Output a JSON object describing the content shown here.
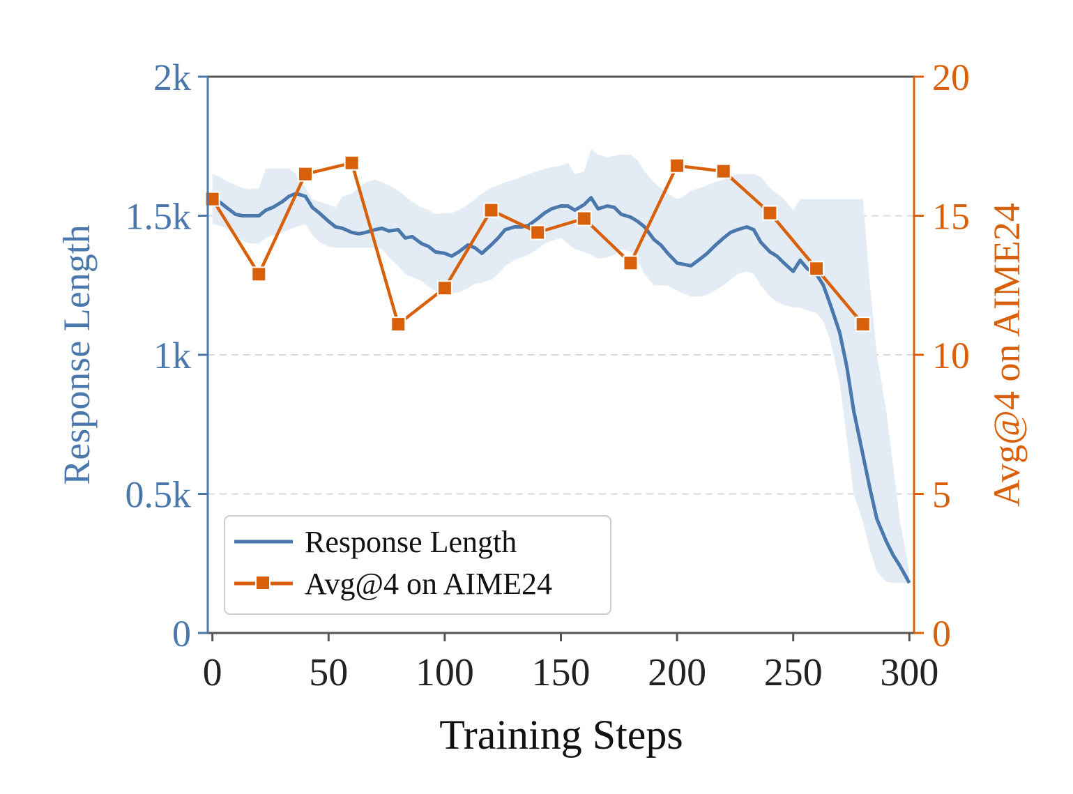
{
  "chart_data": {
    "type": "line",
    "xlabel": "Training Steps",
    "ylabel_left": "Response Length",
    "ylabel_right": "Avg@4 on AIME24",
    "xlim": [
      -2,
      302
    ],
    "ylim_left": [
      0,
      2000
    ],
    "ylim_right": [
      0,
      20
    ],
    "x_ticks": [
      0,
      50,
      100,
      150,
      200,
      250,
      300
    ],
    "x_tick_labels": [
      "0",
      "50",
      "100",
      "150",
      "200",
      "250",
      "300"
    ],
    "y_left_ticks": [
      0,
      500,
      1000,
      1500,
      2000
    ],
    "y_left_tick_labels": [
      "0",
      "0.5k",
      "1k",
      "1.5k",
      "2k"
    ],
    "y_right_ticks": [
      0,
      5,
      10,
      15,
      20
    ],
    "y_right_tick_labels": [
      "0",
      "5",
      "10",
      "15",
      "20"
    ],
    "grid": "horizontal dashed",
    "legend_position": "lower-left",
    "colors": {
      "left": "#4a78ac",
      "right": "#d9600b",
      "band": "#e3ebf4",
      "axis": "#555555"
    },
    "series": [
      {
        "name": "Response Length",
        "axis": "left",
        "marker": "none",
        "x": [
          0,
          3,
          6,
          10,
          13,
          16,
          20,
          23,
          26,
          30,
          33,
          36,
          40,
          43,
          46,
          50,
          53,
          56,
          60,
          63,
          66,
          70,
          73,
          76,
          80,
          83,
          86,
          90,
          93,
          96,
          100,
          103,
          106,
          110,
          113,
          116,
          120,
          123,
          126,
          130,
          133,
          136,
          140,
          143,
          146,
          150,
          153,
          156,
          160,
          163,
          166,
          170,
          173,
          176,
          180,
          183,
          186,
          190,
          193,
          196,
          200,
          203,
          206,
          210,
          213,
          216,
          220,
          223,
          226,
          230,
          233,
          236,
          240,
          243,
          246,
          250,
          253,
          256,
          260,
          263,
          266,
          270,
          273,
          276,
          280,
          283,
          286,
          290,
          293,
          296,
          300
        ],
        "y": [
          1560,
          1550,
          1530,
          1505,
          1500,
          1500,
          1500,
          1520,
          1530,
          1550,
          1570,
          1580,
          1570,
          1530,
          1510,
          1480,
          1460,
          1455,
          1440,
          1435,
          1440,
          1450,
          1455,
          1445,
          1450,
          1420,
          1425,
          1400,
          1390,
          1370,
          1365,
          1355,
          1370,
          1395,
          1385,
          1365,
          1395,
          1420,
          1450,
          1460,
          1460,
          1465,
          1490,
          1510,
          1525,
          1535,
          1535,
          1520,
          1540,
          1565,
          1525,
          1535,
          1530,
          1505,
          1495,
          1480,
          1460,
          1415,
          1395,
          1365,
          1330,
          1325,
          1320,
          1345,
          1365,
          1390,
          1420,
          1440,
          1450,
          1460,
          1450,
          1405,
          1370,
          1355,
          1330,
          1300,
          1340,
          1310,
          1290,
          1250,
          1180,
          1080,
          960,
          800,
          640,
          520,
          410,
          330,
          280,
          240,
          180
        ],
        "band_upper": [
          1650,
          1640,
          1625,
          1610,
          1600,
          1595,
          1600,
          1670,
          1670,
          1670,
          1670,
          1650,
          1600,
          1560,
          1550,
          1540,
          1530,
          1570,
          1580,
          1600,
          1620,
          1630,
          1620,
          1610,
          1590,
          1570,
          1550,
          1530,
          1520,
          1505,
          1510,
          1510,
          1520,
          1540,
          1560,
          1580,
          1600,
          1610,
          1620,
          1630,
          1640,
          1650,
          1660,
          1670,
          1675,
          1680,
          1690,
          1650,
          1660,
          1740,
          1720,
          1710,
          1715,
          1720,
          1720,
          1700,
          1660,
          1620,
          1600,
          1580,
          1560,
          1570,
          1590,
          1600,
          1610,
          1620,
          1630,
          1640,
          1650,
          1650,
          1650,
          1640,
          1600,
          1580,
          1560,
          1520,
          1560,
          1560,
          1560,
          1560,
          1560,
          1560,
          1560,
          1560,
          1560,
          1250,
          1000,
          800,
          600,
          400,
          220
        ],
        "band_lower": [
          1470,
          1465,
          1455,
          1430,
          1410,
          1400,
          1400,
          1420,
          1430,
          1440,
          1450,
          1460,
          1470,
          1430,
          1405,
          1390,
          1385,
          1385,
          1385,
          1385,
          1385,
          1385,
          1380,
          1350,
          1320,
          1290,
          1280,
          1265,
          1245,
          1230,
          1225,
          1220,
          1225,
          1240,
          1255,
          1260,
          1270,
          1290,
          1320,
          1340,
          1350,
          1360,
          1380,
          1400,
          1410,
          1420,
          1400,
          1380,
          1370,
          1360,
          1345,
          1350,
          1360,
          1380,
          1370,
          1340,
          1290,
          1250,
          1250,
          1250,
          1230,
          1220,
          1210,
          1210,
          1215,
          1230,
          1250,
          1270,
          1290,
          1300,
          1290,
          1250,
          1210,
          1190,
          1180,
          1170,
          1170,
          1160,
          1150,
          1120,
          1050,
          900,
          700,
          500,
          400,
          300,
          220,
          185,
          180,
          180,
          180
        ]
      },
      {
        "name": "Avg@4 on AIME24",
        "axis": "right",
        "marker": "square",
        "x": [
          0,
          20,
          40,
          60,
          80,
          100,
          120,
          140,
          160,
          180,
          200,
          220,
          240,
          260,
          280
        ],
        "y": [
          15.6,
          12.9,
          16.5,
          16.9,
          11.1,
          12.4,
          15.2,
          14.4,
          14.9,
          13.3,
          16.8,
          16.6,
          15.1,
          13.1,
          11.1
        ]
      }
    ]
  }
}
